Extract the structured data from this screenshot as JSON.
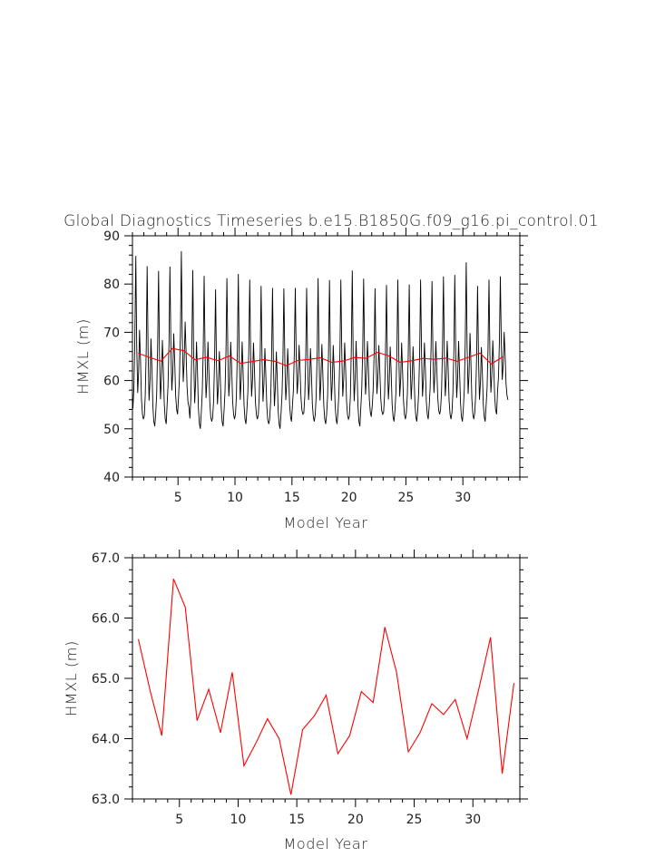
{
  "title": "Global Diagnostics Timeseries b.e15.B1850G.f09_g16.pi_control.01",
  "chart_data": [
    {
      "type": "line",
      "xlabel": "Model Year",
      "ylabel": "HMXL (m)",
      "xlim": [
        1,
        35
      ],
      "ylim": [
        40,
        90
      ],
      "xticks": [
        "5",
        "10",
        "15",
        "20",
        "25",
        "30"
      ],
      "yticks": [
        "40",
        "50",
        "60",
        "70",
        "80",
        "90"
      ],
      "series": [
        {
          "color": "#000000",
          "monthly_pattern": [
            53,
            57,
            66,
            82,
            65,
            56,
            60,
            68,
            62,
            55,
            52,
            51
          ],
          "annual_peaks": [
            85.8,
            83.7,
            82.7,
            83.6,
            86.8,
            82.9,
            81.7,
            78.9,
            81.2,
            82.1,
            80.9,
            79.6,
            79.2,
            79.1,
            79.2,
            79.2,
            81.2,
            80.8,
            80.9,
            82.8,
            81.1,
            79.1,
            79.8,
            80.9,
            79.9,
            80.9,
            80.6,
            81.6,
            81.9,
            84.5,
            79.6,
            80.9,
            81.6
          ],
          "annual_troughs": [
            52.0,
            50.5,
            51.0,
            53.0,
            54.5,
            50.0,
            51.5,
            50.5,
            52.0,
            51.0,
            52.0,
            51.0,
            50.0,
            51.5,
            53.0,
            51.5,
            51.0,
            51.0,
            52.0,
            50.5,
            52.5,
            53.0,
            51.5,
            52.0,
            51.5,
            52.0,
            53.0,
            52.0,
            51.5,
            52.0,
            51.5,
            53.0,
            56.0
          ]
        },
        {
          "color": "#ff0000",
          "source": "annual_means"
        }
      ]
    },
    {
      "type": "line",
      "xlabel": "Model Year",
      "ylabel": "HMXL (m)",
      "xlim": [
        1,
        34
      ],
      "ylim": [
        63.0,
        67.0
      ],
      "xticks": [
        "5",
        "10",
        "15",
        "20",
        "25",
        "30"
      ],
      "yticks": [
        "63.0",
        "64.0",
        "65.0",
        "66.0",
        "67.0"
      ],
      "series": [
        {
          "color": "#ff0000",
          "x": [
            1.5,
            2.5,
            3.5,
            4.5,
            5.5,
            6.5,
            7.5,
            8.5,
            9.5,
            10.5,
            11.5,
            12.5,
            13.5,
            14.5,
            15.5,
            16.5,
            17.5,
            18.5,
            19.5,
            20.5,
            21.5,
            22.5,
            23.5,
            24.5,
            25.5,
            26.5,
            27.5,
            28.5,
            29.5,
            30.5,
            31.5,
            32.5,
            33.5
          ],
          "values": [
            65.65,
            64.8,
            64.05,
            66.65,
            66.18,
            64.3,
            64.82,
            64.1,
            65.1,
            63.55,
            63.92,
            64.33,
            64.0,
            63.07,
            64.15,
            64.38,
            64.72,
            63.75,
            64.05,
            64.78,
            64.6,
            65.85,
            65.1,
            63.78,
            64.1,
            64.58,
            64.4,
            64.65,
            64.0,
            64.82,
            65.68,
            63.42,
            64.92
          ]
        }
      ]
    }
  ]
}
